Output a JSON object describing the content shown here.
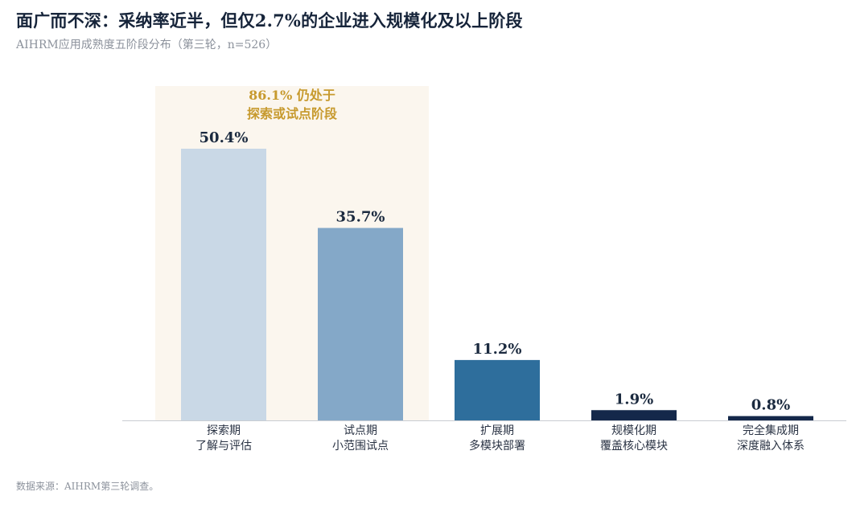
{
  "title": "面广而不深：采纳率近半，但仅2.7%的企业进入规模化及以上阶段",
  "subtitle": "AIHRM应用成熟度五阶段分布（第三轮，n=526）",
  "source": "数据来源：AIHRM第三轮调查。",
  "callout": {
    "line1": "86.1% 仍处于",
    "line2": "探索或试点阶段",
    "text_color": "#c79a2e",
    "background": "#fbf6ee"
  },
  "chart_data": {
    "type": "bar",
    "categories": [
      [
        "探索期",
        "了解与评估"
      ],
      [
        "试点期",
        "小范围试点"
      ],
      [
        "扩展期",
        "多模块部署"
      ],
      [
        "规模化期",
        "覆盖核心模块"
      ],
      [
        "完全集成期",
        "深度融入体系"
      ]
    ],
    "values": [
      50.4,
      35.7,
      11.2,
      1.9,
      0.8
    ],
    "value_labels": [
      "50.4%",
      "35.7%",
      "11.2%",
      "1.9%",
      "0.8%"
    ],
    "colors": [
      "#c9d8e6",
      "#84a8c8",
      "#2e6e9c",
      "#14284a",
      "#14284a"
    ],
    "ylim": [
      0,
      50.4
    ],
    "grid": false,
    "highlight_categories": [
      0,
      1
    ]
  }
}
